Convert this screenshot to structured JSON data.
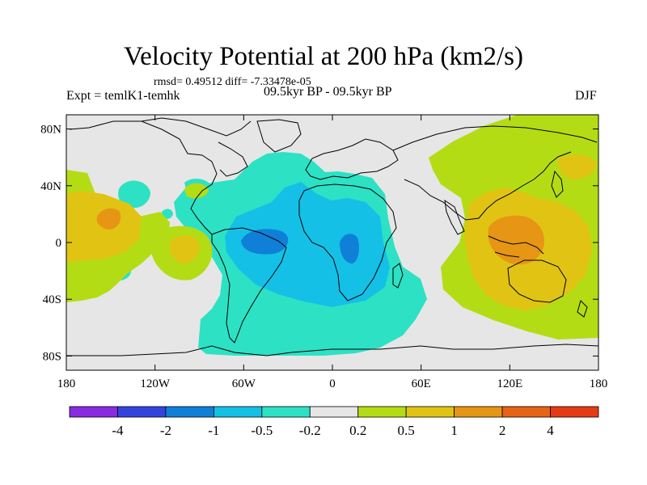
{
  "title": "Velocity Potential at 200 hPa (km2/s)",
  "stats": "rmsd= 0.49512 diff= -7.33478e-05",
  "experiment": "Expt = temlK1-temhk",
  "period": "09.5kyr BP - 09.5kyr BP",
  "season": "DJF",
  "map": {
    "lon_range": [
      -180,
      180
    ],
    "lat_range": [
      -90,
      90
    ],
    "lon_ticks": [
      {
        "value": -180,
        "label": "180"
      },
      {
        "value": -120,
        "label": "120W"
      },
      {
        "value": -60,
        "label": "60W"
      },
      {
        "value": 0,
        "label": "0"
      },
      {
        "value": 60,
        "label": "60E"
      },
      {
        "value": 120,
        "label": "120E"
      },
      {
        "value": 180,
        "label": "180"
      }
    ],
    "lat_ticks": [
      {
        "value": 80,
        "label": "80N"
      },
      {
        "value": 40,
        "label": "40N"
      },
      {
        "value": 0,
        "label": "0"
      },
      {
        "value": -40,
        "label": "40S"
      },
      {
        "value": -80,
        "label": "80S"
      }
    ],
    "background_color": "#e6e6e6"
  },
  "colorbar": {
    "colors": [
      "#8a2be2",
      "#3344dd",
      "#0f7fd8",
      "#14c0e6",
      "#2de1c4",
      "#e6e6e6",
      "#b4dc14",
      "#e1c314",
      "#e69614",
      "#e66414",
      "#e63c14"
    ],
    "labels": [
      "-4",
      "-2",
      "-1",
      "-0.5",
      "-0.2",
      "0.2",
      "0.5",
      "1",
      "2",
      "4"
    ]
  },
  "chart_data": {
    "type": "map-contour",
    "title": "Velocity Potential at 200 hPa (km2/s)",
    "levels": [
      -4,
      -2,
      -1,
      -0.5,
      -0.2,
      0.2,
      0.5,
      1,
      2,
      4
    ],
    "regions": [
      {
        "name": "atlantic-negative",
        "level_class": "-0.5 to -0.2",
        "color": "#2de1c4"
      },
      {
        "name": "south-america-africa-core",
        "level_class": "-1 to -0.5",
        "color": "#14c0e6"
      },
      {
        "name": "amazon-minimum",
        "level_class": "-2 to -1",
        "color": "#0f7fd8"
      },
      {
        "name": "congo-minimum",
        "level_class": "-2 to -1",
        "color": "#0f7fd8"
      },
      {
        "name": "asia-pacific-positive",
        "level_class": "0.2 to 0.5",
        "color": "#b4dc14"
      },
      {
        "name": "indonesia-core",
        "level_class": "0.5 to 1",
        "color": "#e1c314"
      },
      {
        "name": "maritime-continent-maximum",
        "level_class": "1 to 2",
        "color": "#e69614"
      },
      {
        "name": "central-pacific-positive",
        "level_class": "0.5 to 1",
        "color": "#e1c314"
      },
      {
        "name": "central-pacific-maximum",
        "level_class": "1 to 2",
        "color": "#e69614"
      },
      {
        "name": "east-pacific-positive",
        "level_class": "0.5 to 1",
        "color": "#e1c314"
      }
    ]
  }
}
